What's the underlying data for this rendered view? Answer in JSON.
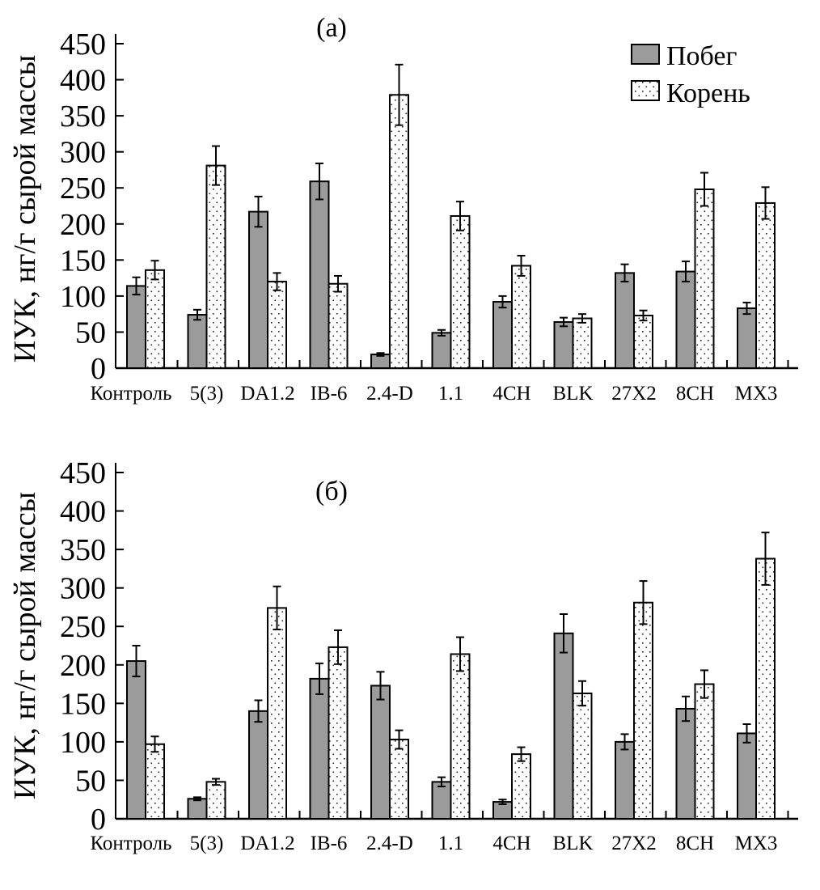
{
  "chart_data": [
    {
      "type": "bar",
      "panel_label": "(a)",
      "title": "",
      "xlabel": "",
      "ylabel": "ИУК, нг/г сырой массы",
      "ylim": [
        0,
        450
      ],
      "yticks": [
        0,
        50,
        100,
        150,
        200,
        250,
        300,
        350,
        400,
        450
      ],
      "grid": false,
      "legend_position": "top-right",
      "categories": [
        "Контроль",
        "5(3)",
        "DA1.2",
        "IB-6",
        "2.4-D",
        "1.1",
        "4CH",
        "BLK",
        "27X2",
        "8CH",
        "MX3"
      ],
      "series": [
        {
          "name": "Побег",
          "pattern": "solid-gray",
          "values": [
            114,
            74,
            217,
            259,
            19,
            49,
            92,
            64,
            132,
            134,
            83
          ],
          "errors": [
            12,
            7,
            21,
            25,
            2,
            4,
            8,
            6,
            12,
            14,
            8
          ]
        },
        {
          "name": "Корень",
          "pattern": "dotted-white",
          "values": [
            136,
            281,
            120,
            117,
            379,
            211,
            142,
            69,
            73,
            248,
            229
          ],
          "errors": [
            13,
            27,
            12,
            11,
            42,
            20,
            14,
            6,
            7,
            23,
            22
          ]
        }
      ]
    },
    {
      "type": "bar",
      "panel_label": "(б)",
      "title": "",
      "xlabel": "",
      "ylabel": "ИУК, нг/г сырой массы",
      "ylim": [
        0,
        450
      ],
      "yticks": [
        0,
        50,
        100,
        150,
        200,
        250,
        300,
        350,
        400,
        450
      ],
      "grid": false,
      "legend_position": "none",
      "categories": [
        "Контроль",
        "5(3)",
        "DA1.2",
        "IB-6",
        "2.4-D",
        "1.1",
        "4CH",
        "BLK",
        "27X2",
        "8CH",
        "MX3"
      ],
      "series": [
        {
          "name": "Побег",
          "pattern": "solid-gray",
          "values": [
            205,
            26,
            140,
            182,
            173,
            48,
            22,
            241,
            100,
            143,
            111
          ],
          "errors": [
            20,
            2,
            14,
            20,
            18,
            6,
            3,
            25,
            10,
            16,
            12
          ]
        },
        {
          "name": "Корень",
          "pattern": "dotted-white",
          "values": [
            97,
            48,
            274,
            223,
            103,
            214,
            84,
            163,
            281,
            175,
            338
          ],
          "errors": [
            10,
            4,
            28,
            22,
            12,
            22,
            9,
            16,
            28,
            18,
            34
          ]
        }
      ]
    }
  ],
  "colors": {
    "shoot_fill": "#9b9b9b",
    "root_fill": "#ffffff",
    "stroke": "#000000"
  }
}
